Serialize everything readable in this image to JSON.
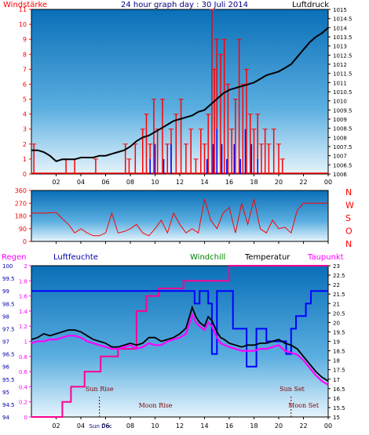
{
  "title": "24 hour graph day : 30 Juli 2014",
  "chart_data": [
    {
      "type": "line",
      "name": "wind-pressure",
      "left_label": "Windstärke",
      "right_label": "Luftdruck",
      "y_left_ticks": [
        "0",
        "1",
        "2",
        "3",
        "4",
        "5",
        "6",
        "7",
        "8",
        "9",
        "10",
        "11"
      ],
      "y_right_ticks": [
        "1006",
        "1006.5",
        "1007",
        "1007.5",
        "1008",
        "1008.5",
        "1009",
        "1009.5",
        "1010",
        "1010.5",
        "1011",
        "1011.5",
        "1012",
        "1012.5",
        "1013",
        "1013.5",
        "1014",
        "1014.5",
        "1015"
      ],
      "x_ticks": [
        "02",
        "04",
        "06",
        "08",
        "10",
        "12",
        "14",
        "16",
        "18",
        "20",
        "22",
        "00"
      ],
      "xlim": [
        0,
        24
      ],
      "ylim_left": [
        0,
        11
      ],
      "ylim_right": [
        1006,
        1015
      ],
      "pressure": {
        "x": [
          0,
          0.5,
          1,
          1.5,
          2,
          2.5,
          3,
          3.5,
          4,
          4.5,
          5,
          5.5,
          6,
          6.5,
          7,
          7.5,
          8,
          8.5,
          9,
          9.5,
          10,
          10.5,
          11,
          11.5,
          12,
          12.5,
          13,
          13.5,
          14,
          14.5,
          15,
          15.5,
          16,
          16.5,
          17,
          17.5,
          18,
          18.5,
          19,
          19.5,
          20,
          20.5,
          21,
          21.5,
          22,
          22.5,
          23,
          23.5,
          24
        ],
        "y": [
          1007.3,
          1007.3,
          1007.2,
          1007.0,
          1006.7,
          1006.8,
          1006.8,
          1006.8,
          1006.9,
          1006.9,
          1006.9,
          1007.0,
          1007.0,
          1007.1,
          1007.2,
          1007.3,
          1007.5,
          1007.8,
          1008.0,
          1008.1,
          1008.3,
          1008.5,
          1008.7,
          1008.9,
          1009.0,
          1009.1,
          1009.2,
          1009.4,
          1009.5,
          1009.8,
          1010.1,
          1010.4,
          1010.6,
          1010.7,
          1010.8,
          1010.9,
          1011.0,
          1011.2,
          1011.4,
          1011.5,
          1011.6,
          1011.8,
          1012.0,
          1012.4,
          1012.8,
          1013.2,
          1013.5,
          1013.7,
          1014.0
        ]
      },
      "wind_gusts": {
        "x": [
          0.2,
          2.8,
          3.5,
          5.2,
          7.6,
          7.9,
          8.4,
          9.0,
          9.3,
          9.6,
          9.9,
          10.2,
          10.6,
          11.0,
          11.3,
          11.7,
          12.1,
          12.5,
          12.9,
          13.3,
          13.7,
          14.0,
          14.3,
          14.6,
          14.8,
          15.0,
          15.3,
          15.6,
          15.9,
          16.2,
          16.5,
          16.8,
          17.1,
          17.4,
          17.7,
          18.0,
          18.3,
          18.6,
          18.9,
          19.2,
          19.6,
          20.0,
          20.3
        ],
        "y": [
          2,
          1,
          1,
          1,
          2,
          1,
          2,
          3,
          4,
          2,
          5,
          3,
          5,
          2,
          3,
          4,
          5,
          2,
          3,
          1,
          3,
          2,
          4,
          11,
          7,
          9,
          8,
          9,
          6,
          3,
          5,
          9,
          6,
          7,
          4,
          3,
          4,
          2,
          3,
          2,
          3,
          2,
          1
        ]
      },
      "wind_avg": {
        "x": [
          9.6,
          10.0,
          10.7,
          11.3,
          14.2,
          14.7,
          15.0,
          15.4,
          15.8,
          16.4,
          16.9,
          17.3,
          17.8,
          18.3
        ],
        "y": [
          1,
          2,
          1,
          2,
          1,
          2,
          3,
          2,
          1,
          2,
          1,
          3,
          2,
          1
        ]
      }
    },
    {
      "type": "line",
      "name": "wind-direction",
      "right_label_letters": [
        "N",
        "W",
        "S",
        "O",
        "N"
      ],
      "y_ticks": [
        "0",
        "90",
        "180",
        "270",
        "360"
      ],
      "ylim": [
        0,
        360
      ],
      "x": [
        0,
        1,
        2,
        2.5,
        3,
        3.5,
        4,
        4.5,
        5,
        5.5,
        6,
        6.5,
        7,
        7.5,
        8,
        8.5,
        9,
        9.5,
        10,
        10.5,
        11,
        11.5,
        12,
        12.5,
        13,
        13.5,
        14,
        14.5,
        15,
        15.5,
        16,
        16.5,
        17,
        17.5,
        18,
        18.5,
        19,
        19.5,
        20,
        20.5,
        21,
        21.5,
        22,
        22.5,
        23,
        23.5,
        24
      ],
      "y": [
        200,
        200,
        205,
        160,
        120,
        60,
        90,
        60,
        40,
        40,
        60,
        200,
        60,
        70,
        90,
        120,
        60,
        40,
        90,
        150,
        60,
        200,
        120,
        60,
        90,
        60,
        300,
        150,
        90,
        200,
        240,
        60,
        270,
        120,
        300,
        90,
        60,
        150,
        90,
        100,
        60,
        220,
        270,
        270,
        270,
        270,
        270
      ]
    },
    {
      "type": "line",
      "name": "humidity-temperature",
      "legend": [
        "Regen",
        "Luftfeuchte",
        "Windchill",
        "Temperatur",
        "Taupunkt"
      ],
      "y_rain_ticks": [
        "0",
        "0.2",
        "0.4",
        "0.6",
        "0.8",
        "1",
        "1.2",
        "1.4",
        "1.6",
        "1.8",
        "2"
      ],
      "y_humidity_ticks": [
        "94",
        "94.5",
        "95",
        "95.5",
        "96",
        "96.5",
        "97",
        "97.5",
        "98",
        "98.5",
        "99",
        "99.5",
        "100"
      ],
      "y_temp_ticks": [
        "15",
        "15.5",
        "16",
        "16.5",
        "17",
        "17.5",
        "18",
        "18.5",
        "19",
        "19.5",
        "20",
        "20.5",
        "21",
        "21.5",
        "22",
        "22.5",
        "23"
      ],
      "ylim_rain": [
        0,
        2
      ],
      "ylim_humidity": [
        94,
        100
      ],
      "ylim_temp": [
        15,
        23
      ],
      "humidity": {
        "x": [
          0,
          1,
          2,
          3,
          4,
          5,
          6,
          7,
          8,
          9,
          10,
          11,
          12,
          12.8,
          13.2,
          13.6,
          14,
          14.3,
          14.6,
          15,
          15.3,
          15.6,
          16,
          16.3,
          16.7,
          17,
          17.4,
          17.8,
          18.2,
          18.6,
          19,
          19.4,
          19.8,
          20.2,
          20.6,
          21,
          21.4,
          21.8,
          22.2,
          22.6,
          23,
          23.5,
          24
        ],
        "y": [
          99,
          99,
          99,
          99,
          99,
          99,
          99,
          99,
          99,
          99,
          99,
          99,
          99,
          99,
          98.5,
          99,
          99,
          98.5,
          96.5,
          99,
          99,
          99,
          99,
          97.5,
          97.5,
          97.5,
          96,
          96,
          97.5,
          97.5,
          97,
          97,
          97,
          97,
          96.5,
          97.5,
          98,
          98,
          98.5,
          99,
          99,
          99,
          99
        ]
      },
      "temperature": {
        "x": [
          0,
          0.5,
          1,
          1.5,
          2,
          2.5,
          3,
          3.5,
          4,
          4.5,
          5,
          5.5,
          6,
          6.5,
          7,
          7.5,
          8,
          8.5,
          9,
          9.5,
          10,
          10.5,
          11,
          11.5,
          12,
          12.5,
          13,
          13.3,
          13.6,
          14,
          14.3,
          14.6,
          15,
          15.3,
          15.6,
          16,
          16.5,
          17,
          17.5,
          18,
          18.5,
          19,
          19.5,
          20,
          20.5,
          21,
          21.5,
          22,
          22.5,
          23,
          23.5,
          24
        ],
        "y": [
          19.1,
          19.2,
          19.4,
          19.3,
          19.4,
          19.5,
          19.6,
          19.6,
          19.5,
          19.3,
          19.1,
          19.0,
          18.9,
          18.7,
          18.7,
          18.8,
          18.9,
          18.8,
          18.9,
          19.2,
          19.2,
          19.0,
          19.1,
          19.2,
          19.4,
          19.7,
          20.8,
          20.3,
          20.0,
          19.8,
          20.3,
          20.1,
          19.5,
          19.2,
          19.1,
          18.9,
          18.8,
          18.7,
          18.8,
          18.8,
          18.9,
          18.9,
          19.0,
          19.1,
          18.9,
          18.8,
          18.6,
          18.2,
          17.8,
          17.4,
          17.1,
          16.9
        ]
      },
      "dewpoint": {
        "x": [
          0,
          0.5,
          1,
          1.5,
          2,
          2.5,
          3,
          3.5,
          4,
          4.5,
          5,
          5.5,
          6,
          6.5,
          7,
          7.5,
          8,
          8.5,
          9,
          9.5,
          10,
          10.5,
          11,
          11.5,
          12,
          12.5,
          13,
          13.3,
          13.6,
          14,
          14.3,
          14.6,
          15,
          15.3,
          15.6,
          16,
          16.5,
          17,
          17.5,
          18,
          18.5,
          19,
          19.5,
          20,
          20.5,
          21,
          21.5,
          22,
          22.5,
          23,
          23.5,
          24
        ],
        "y": [
          18.9,
          19.0,
          19.0,
          19.1,
          19.1,
          19.2,
          19.3,
          19.3,
          19.2,
          19.0,
          18.9,
          18.8,
          18.7,
          18.6,
          18.6,
          18.7,
          18.8,
          18.6,
          18.7,
          18.9,
          18.8,
          18.8,
          19.0,
          19.1,
          19.2,
          19.4,
          20.4,
          20.0,
          19.8,
          19.6,
          20.0,
          19.8,
          19.2,
          18.9,
          18.8,
          18.7,
          18.6,
          18.5,
          18.5,
          18.5,
          18.6,
          18.6,
          18.7,
          18.8,
          18.5,
          18.4,
          18.3,
          18.0,
          17.6,
          17.2,
          16.9,
          16.7
        ]
      },
      "rain": {
        "x": [
          0,
          2.5,
          2.5,
          3.2,
          3.2,
          4.3,
          4.3,
          5.6,
          5.6,
          7.0,
          7.0,
          8.5,
          8.5,
          9.3,
          9.3,
          10.3,
          10.3,
          12.3,
          12.3,
          16.0,
          16.0,
          24
        ],
        "y": [
          0,
          0,
          0.2,
          0.2,
          0.4,
          0.4,
          0.6,
          0.6,
          0.8,
          0.8,
          0.9,
          0.9,
          1.4,
          1.4,
          1.6,
          1.6,
          1.7,
          1.7,
          1.8,
          1.8,
          2.0,
          2.0
        ]
      }
    }
  ],
  "astro": {
    "sun_rise": "Sun Rise",
    "sun_set": "Sun Set",
    "moon_rise": "Moon Rise",
    "moon_set": "Moon Set",
    "sun_dec": "Sun Dec",
    "sun_rise_hour": 5.5,
    "sun_set_hour": 21.0,
    "moon_rise_hour": 10.0,
    "moon_set_hour": 21.5,
    "sun_dec_hour": 5.6
  },
  "colors": {
    "wind": "#ff0000",
    "wind_avg": "#0000ff",
    "pressure": "#000000",
    "direction": "#ff0000",
    "humidity": "#0000ff",
    "temperature": "#000000",
    "dewpoint": "#ff00ff",
    "rain": "#ff0090",
    "left_axis_wind": "#ff0000",
    "left_axis_rain": "#ff00ff",
    "left_axis_humidity": "#0000aa",
    "windchill": "#008000"
  }
}
